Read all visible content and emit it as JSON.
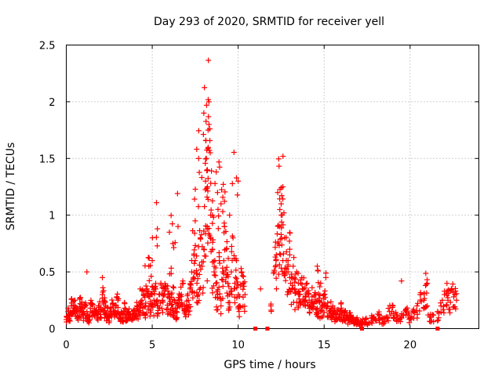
{
  "chart_data": {
    "type": "scatter",
    "title": "Day 293 of 2020, SRMTID for receiver yell",
    "xlabel": "GPS time / hours",
    "ylabel": "SRMTID / TECUs",
    "xlim": [
      0,
      24
    ],
    "ylim": [
      0,
      2.5
    ],
    "x_ticks": [
      0,
      5,
      10,
      15,
      20
    ],
    "x_tick_labels": [
      "0",
      "5",
      "10",
      "15",
      "20"
    ],
    "y_ticks": [
      0,
      0.5,
      1,
      1.5,
      2,
      2.5
    ],
    "y_tick_labels": [
      "0",
      "0.5",
      "1",
      "1.5",
      "2",
      "2.5"
    ],
    "grid": true,
    "marker": "plus",
    "series": [
      {
        "name": "SRMTID",
        "color": "#ff0000",
        "x": [
          0.0,
          0.1,
          0.2,
          0.3,
          0.4,
          0.5,
          0.6,
          0.7,
          0.8,
          0.9,
          1.0,
          1.1,
          1.2,
          1.3,
          1.4,
          1.5,
          1.6,
          1.7,
          1.8,
          1.9,
          2.0,
          2.1,
          2.2,
          2.3,
          2.4,
          2.5,
          2.6,
          2.7,
          2.8,
          2.9,
          3.0,
          3.1,
          3.2,
          3.3,
          3.4,
          3.5,
          3.6,
          3.7,
          3.8,
          3.9,
          4.0,
          4.1,
          4.2,
          4.3,
          4.4,
          4.5,
          4.6,
          4.7,
          4.8,
          4.9,
          5.0,
          5.1,
          5.2,
          5.3,
          5.4,
          5.5,
          5.6,
          5.7,
          5.8,
          5.9,
          6.0,
          6.1,
          6.2,
          6.3,
          6.4,
          6.5,
          6.6,
          6.7,
          6.8,
          6.9,
          7.0,
          7.1,
          7.2,
          7.3,
          7.4,
          7.5,
          7.6,
          7.7,
          7.8,
          7.9,
          8.0,
          8.1,
          8.15,
          8.2,
          8.25,
          8.3,
          8.4,
          8.5,
          8.6,
          8.7,
          8.8,
          8.9,
          9.0,
          9.1,
          9.2,
          9.3,
          9.4,
          9.5,
          9.6,
          9.7,
          9.8,
          9.9,
          10.0,
          10.1,
          10.2,
          10.3,
          10.4,
          11.3,
          11.9,
          12.1,
          12.2,
          12.3,
          12.4,
          12.5,
          12.6,
          12.7,
          12.8,
          12.9,
          13.0,
          13.1,
          13.2,
          13.3,
          13.4,
          13.5,
          13.6,
          13.7,
          13.8,
          13.9,
          14.0,
          14.1,
          14.2,
          14.3,
          14.4,
          14.5,
          14.6,
          14.7,
          14.8,
          14.9,
          15.0,
          15.1,
          15.2,
          15.3,
          15.4,
          15.5,
          15.6,
          15.7,
          15.8,
          15.9,
          16.0,
          16.1,
          16.2,
          16.3,
          16.4,
          16.5,
          16.6,
          16.7,
          16.8,
          16.9,
          17.0,
          17.2,
          17.4,
          17.6,
          17.8,
          18.0,
          18.2,
          18.4,
          18.6,
          18.8,
          19.0,
          19.2,
          19.4,
          19.6,
          19.8,
          20.0,
          20.2,
          20.4,
          20.6,
          20.8,
          21.0,
          21.2,
          21.6,
          21.8,
          22.0,
          22.2,
          22.4,
          22.6,
          22.7,
          0.1,
          0.5,
          1.2,
          2.1,
          2.3,
          4.3,
          4.8,
          5.0,
          5.3,
          6.0,
          6.2,
          6.5,
          7.3,
          7.5,
          7.7,
          8.0,
          8.2,
          8.3,
          8.5,
          8.8,
          9.0,
          9.2,
          9.5,
          10.0,
          12.3,
          12.5,
          12.6,
          13.0,
          14.6,
          14.8,
          15.5,
          19.5,
          20.9,
          21.0,
          22.0,
          22.5
        ],
        "y": [
          0.08,
          0.15,
          0.12,
          0.2,
          0.18,
          0.25,
          0.15,
          0.1,
          0.22,
          0.18,
          0.12,
          0.2,
          0.15,
          0.1,
          0.18,
          0.22,
          0.12,
          0.15,
          0.1,
          0.2,
          0.15,
          0.3,
          0.25,
          0.12,
          0.18,
          0.1,
          0.15,
          0.22,
          0.12,
          0.2,
          0.25,
          0.1,
          0.15,
          0.12,
          0.18,
          0.1,
          0.15,
          0.12,
          0.08,
          0.15,
          0.12,
          0.2,
          0.15,
          0.18,
          0.25,
          0.3,
          0.2,
          0.35,
          0.28,
          0.22,
          0.3,
          0.25,
          0.35,
          0.2,
          0.3,
          0.4,
          0.25,
          0.3,
          0.35,
          0.28,
          0.22,
          0.3,
          0.18,
          0.25,
          0.15,
          0.2,
          0.25,
          0.3,
          0.4,
          0.15,
          0.2,
          0.25,
          0.35,
          0.5,
          0.45,
          0.6,
          0.4,
          0.3,
          0.8,
          0.55,
          0.7,
          1.3,
          1.5,
          0.9,
          1.75,
          1.8,
          1.0,
          0.7,
          0.5,
          0.4,
          0.3,
          0.6,
          0.2,
          0.5,
          0.9,
          0.7,
          0.4,
          0.3,
          0.5,
          0.8,
          0.4,
          0.6,
          0.3,
          0.2,
          0.5,
          0.4,
          0.3,
          0.35,
          0.2,
          0.5,
          0.6,
          0.75,
          0.9,
          1.1,
          1.25,
          0.8,
          0.6,
          0.5,
          0.7,
          0.45,
          0.55,
          0.35,
          0.5,
          0.4,
          0.3,
          0.45,
          0.35,
          0.25,
          0.4,
          0.3,
          0.2,
          0.28,
          0.22,
          0.3,
          0.18,
          0.25,
          0.15,
          0.2,
          0.3,
          0.45,
          0.2,
          0.15,
          0.18,
          0.12,
          0.15,
          0.1,
          0.15,
          0.12,
          0.18,
          0.1,
          0.15,
          0.12,
          0.08,
          0.12,
          0.06,
          0.1,
          0.05,
          0.08,
          0.04,
          0.06,
          0.08,
          0.05,
          0.1,
          0.07,
          0.12,
          0.08,
          0.1,
          0.15,
          0.2,
          0.12,
          0.08,
          0.12,
          0.15,
          0.1,
          0.15,
          0.2,
          0.3,
          0.25,
          0.2,
          0.1,
          0.15,
          0.2,
          0.3,
          0.25,
          0.35,
          0.3,
          0.25,
          0.18,
          0.15,
          0.5,
          0.45,
          0.2,
          0.35,
          0.55,
          0.6,
          0.88,
          0.85,
          0.75,
          0.9,
          0.6,
          0.95,
          1.5,
          1.9,
          1.4,
          2.0,
          1.0,
          1.2,
          1.1,
          0.9,
          1.0,
          1.3,
          1.2,
          1.0,
          0.6,
          0.65,
          0.55,
          0.4,
          0.2,
          0.42,
          0.38,
          0.4,
          0.33,
          0.32
        ],
        "markers_at_zero": [
          11.0,
          11.7,
          17.2,
          21.6
        ]
      }
    ]
  }
}
